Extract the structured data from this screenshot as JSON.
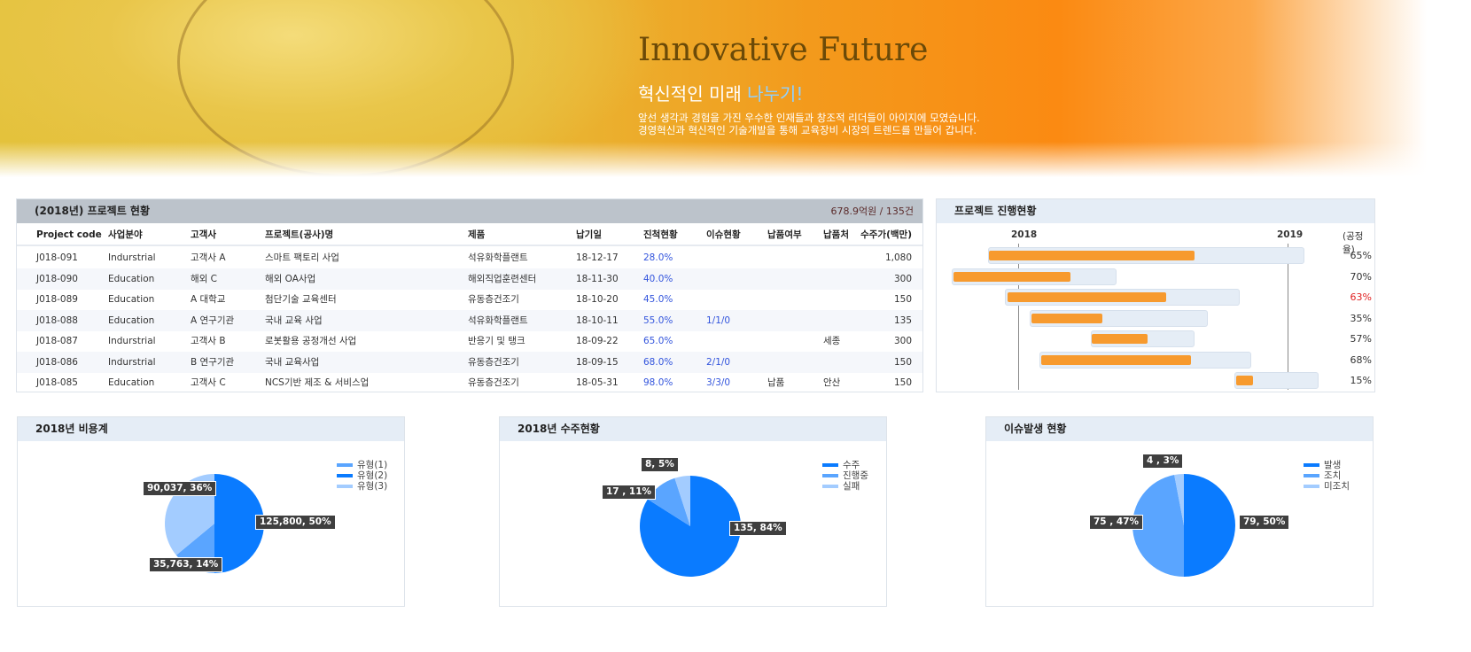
{
  "banner": {
    "title": "Innovative Future",
    "subtitle": "혁신적인 미래 ",
    "subtitle_highlight": "나누기!",
    "desc1": "앞선 생각과 경험을 가진 우수한 인재들과 창조적 리더들이 아이지에 모였습니다.",
    "desc2": "경영혁신과 혁신적인 기술개발을 통해 교육장비 시장의 트렌드를 만들어 갑니다."
  },
  "projects": {
    "title": "(2018년) 프로젝트 현황",
    "total": "678.9억원 / 135건",
    "columns": [
      "Project code",
      "사업분야",
      "고객사",
      "프로젝트(공사)명",
      "제품",
      "납기일",
      "진척현황",
      "이슈현황",
      "납품여부",
      "납품처",
      "수주가(백만)"
    ],
    "rows": [
      [
        "J018-091",
        "Indurstrial",
        "고객사 A",
        "스마트 팩토리 사업",
        "석유화학플랜트",
        "18-12-17",
        "28.0%",
        "",
        "",
        "",
        "1,080"
      ],
      [
        "J018-090",
        "Education",
        "해외 C",
        "해외 OA사업",
        "해외직업훈련센터",
        "18-11-30",
        "40.0%",
        "",
        "",
        "",
        "300"
      ],
      [
        "J018-089",
        "Education",
        "A 대학교",
        "첨단기술 교육센터",
        "유동층건조기",
        "18-10-20",
        "45.0%",
        "",
        "",
        "",
        "150"
      ],
      [
        "J018-088",
        "Education",
        "A 연구기관",
        "국내 교육 사업",
        "석유화학플랜트",
        "18-10-11",
        "55.0%",
        "1/1/0",
        "",
        "",
        "135"
      ],
      [
        "J018-087",
        "Indurstrial",
        "고객사 B",
        "로봇활용 공정개선 사업",
        "반응기 및 탱크",
        "18-09-22",
        "65.0%",
        "",
        "",
        "세종",
        "300"
      ],
      [
        "J018-086",
        "Indurstrial",
        "B 연구기관",
        "국내 교육사업",
        "유동층건조기",
        "18-09-15",
        "68.0%",
        "2/1/0",
        "",
        "",
        "150"
      ],
      [
        "J018-085",
        "Education",
        "고객사 C",
        "NCS기반 제조 & 서비스업",
        "유동층건조기",
        "18-05-31",
        "98.0%",
        "3/3/0",
        "납품",
        "안산",
        "150"
      ]
    ]
  },
  "progress": {
    "title": "프로젝트 진행현황",
    "years": [
      "2018",
      "2019"
    ],
    "rate_label": "(공정율)",
    "rates": [
      "65%",
      "70%",
      "63%",
      "35%",
      "57%",
      "68%",
      "15%"
    ],
    "warn_color": "#e02020",
    "bar_color": "#f79a2e",
    "track_color": "#e5edf6"
  },
  "chart_data": [
    {
      "type": "pie",
      "title": "2018년 비용계",
      "legend": [
        "유형(1)",
        "유형(2)",
        "유형(3)"
      ],
      "slices": [
        {
          "name": "유형(2)",
          "value": 125800,
          "pct": 50,
          "label": "125,800, 50%",
          "color": "#0a7bff"
        },
        {
          "name": "유형(1)",
          "value": 35763,
          "pct": 14,
          "label": "35,763, 14%",
          "color": "#5aa5ff"
        },
        {
          "name": "유형(3)",
          "value": 90037,
          "pct": 36,
          "label": "90,037, 36%",
          "color": "#a3ccff"
        }
      ]
    },
    {
      "type": "pie",
      "title": "2018년 수주현황",
      "legend": [
        "수주",
        "진행중",
        "실패"
      ],
      "slices": [
        {
          "name": "수주",
          "value": 135,
          "pct": 84,
          "label": "135, 84%",
          "color": "#0a7bff"
        },
        {
          "name": "진행중",
          "value": 17,
          "pct": 11,
          "label": "17 , 11%",
          "color": "#5aa5ff"
        },
        {
          "name": "실패",
          "value": 8,
          "pct": 5,
          "label": "8, 5%",
          "color": "#a3ccff"
        }
      ]
    },
    {
      "type": "pie",
      "title": "이슈발생 현황",
      "legend": [
        "발생",
        "조치",
        "미조치"
      ],
      "slices": [
        {
          "name": "발생",
          "value": 79,
          "pct": 50,
          "label": "79, 50%",
          "color": "#0a7bff"
        },
        {
          "name": "조치",
          "value": 75,
          "pct": 47,
          "label": "75 , 47%",
          "color": "#5aa5ff"
        },
        {
          "name": "미조치",
          "value": 4,
          "pct": 3,
          "label": "4 , 3%",
          "color": "#a3ccff"
        }
      ]
    }
  ]
}
